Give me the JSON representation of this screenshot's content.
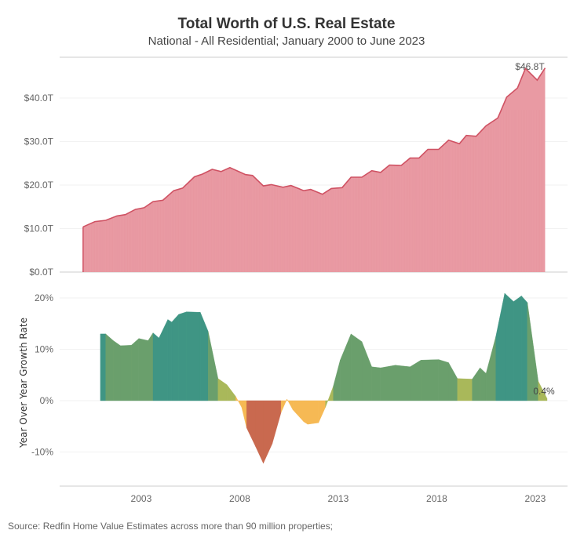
{
  "title": "Total Worth of U.S. Real Estate",
  "subtitle": "National - All Residential; January 2000 to June 2023",
  "source": "Source: Redfin Home Value Estimates across more than 90 million properties;",
  "colors": {
    "area_fill": "#e99aa3",
    "area_line": "#cf5263",
    "decline_strong": "#c9694f",
    "decline": "#f6b954",
    "low_growth": "#a9b85a",
    "growth": "#6a9f6c",
    "strong_growth": "#3f9584"
  },
  "chart_data": [
    {
      "type": "area",
      "title": "",
      "xlabel": "",
      "ylabel": "",
      "ylim": [
        0,
        48
      ],
      "xlim": [
        1999.0,
        2024.3
      ],
      "yticks": [
        "$0.0T",
        "$10.0T",
        "$20.0T",
        "$30.0T",
        "$40.0T"
      ],
      "ytick_values": [
        0,
        10,
        20,
        30,
        40
      ],
      "grid": true,
      "annotation": "$46.8T",
      "x": [
        2000.05,
        2000.65,
        2001.2,
        2001.77,
        2002.2,
        2002.7,
        2003.15,
        2003.6,
        2004.1,
        2004.65,
        2005.1,
        2005.7,
        2006.1,
        2006.6,
        2007.05,
        2007.5,
        2008.3,
        2008.65,
        2009.2,
        2009.6,
        2010.2,
        2010.6,
        2011.25,
        2011.6,
        2012.2,
        2012.65,
        2013.2,
        2013.65,
        2014.2,
        2014.7,
        2015.15,
        2015.6,
        2016.2,
        2016.65,
        2017.1,
        2017.55,
        2018.1,
        2018.6,
        2019.15,
        2019.5,
        2020.0,
        2020.5,
        2021.1,
        2021.55,
        2022.1,
        2022.5,
        2023.1,
        2023.5
      ],
      "values": [
        10.4,
        11.6,
        11.9,
        12.9,
        13.2,
        14.4,
        14.8,
        16.2,
        16.5,
        18.7,
        19.3,
        21.9,
        22.5,
        23.6,
        23.1,
        24.0,
        22.4,
        22.2,
        19.8,
        20.1,
        19.5,
        19.9,
        18.7,
        19.0,
        17.9,
        19.2,
        19.4,
        21.8,
        21.8,
        23.3,
        22.9,
        24.6,
        24.5,
        26.2,
        26.2,
        28.2,
        28.2,
        30.3,
        29.5,
        31.4,
        31.2,
        33.6,
        35.4,
        40.2,
        42.3,
        46.8,
        44.1,
        46.9
      ]
    },
    {
      "type": "bar",
      "title": "",
      "xlabel": "",
      "ylabel": "Year Over Year Growth Rate",
      "ylim": [
        -15,
        22
      ],
      "xlim": [
        1999.0,
        2024.3
      ],
      "yticks": [
        "-10%",
        "0%",
        "10%",
        "20%"
      ],
      "ytick_values": [
        -10,
        0,
        10,
        20
      ],
      "xticks": [
        "2003",
        "2008",
        "2013",
        "2018",
        "2023"
      ],
      "xtick_values": [
        2003,
        2008,
        2013,
        2018,
        2023
      ],
      "grid": true,
      "annotation": "0.4%",
      "x": [
        2000.93,
        2001.2,
        2001.58,
        2001.95,
        2002.5,
        2002.88,
        2003.35,
        2003.6,
        2003.9,
        2004.35,
        2004.55,
        2004.9,
        2005.3,
        2006.0,
        2006.4,
        2006.9,
        2007.35,
        2007.8,
        2008.1,
        2008.35,
        2008.8,
        2009.2,
        2009.65,
        2010.1,
        2010.4,
        2010.7,
        2011.25,
        2011.45,
        2012.0,
        2012.35,
        2012.75,
        2013.1,
        2013.65,
        2014.2,
        2014.7,
        2015.15,
        2015.9,
        2016.65,
        2017.2,
        2018.1,
        2018.6,
        2019.05,
        2019.8,
        2020.2,
        2020.5,
        2021.0,
        2021.45,
        2021.9,
        2022.3,
        2022.6,
        2023.15,
        2023.6
      ],
      "values": [
        13.0,
        13.0,
        11.7,
        10.7,
        10.8,
        12.1,
        11.7,
        13.2,
        12.2,
        15.8,
        15.3,
        16.8,
        17.3,
        17.2,
        13.5,
        4.3,
        3.1,
        0.8,
        -1.3,
        -5.3,
        -8.9,
        -12.2,
        -8.4,
        -2.3,
        0.3,
        -1.8,
        -4.1,
        -4.6,
        -4.3,
        -1.3,
        2.8,
        7.9,
        13.0,
        11.5,
        6.6,
        6.4,
        6.9,
        6.6,
        7.9,
        8.0,
        7.4,
        4.3,
        4.2,
        6.4,
        5.3,
        12.5,
        20.9,
        19.3,
        20.4,
        19.1,
        3.8,
        0.4
      ]
    }
  ]
}
